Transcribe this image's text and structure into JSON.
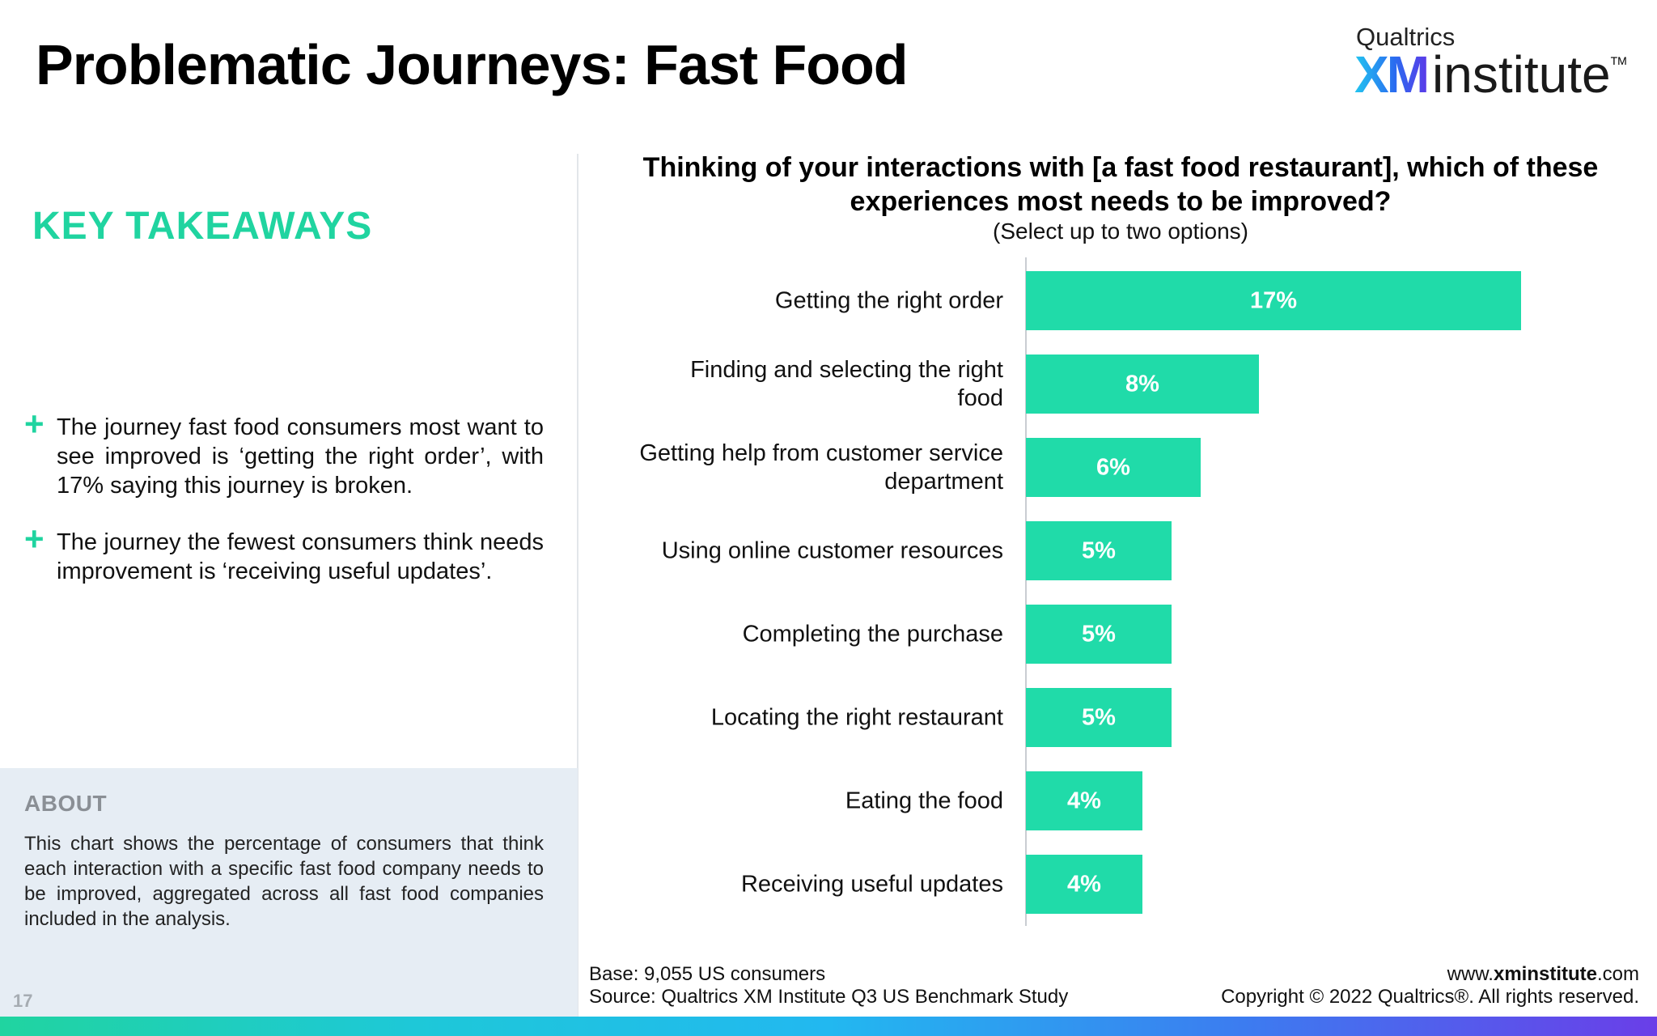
{
  "header": {
    "title": "Problematic Journeys: Fast Food",
    "logo_company": "Qualtrics",
    "logo_xm": "XM",
    "logo_word": "institute",
    "logo_tm": "TM"
  },
  "takeaways": {
    "heading": "KEY TAKEAWAYS",
    "bullet_symbol": "+",
    "items": [
      "The journey fast food consumers most want to see improved is ‘getting the right order’, with 17% saying this journey is broken.",
      "The journey the fewest consumers think needs improvement is ‘receiving useful updates’."
    ]
  },
  "about": {
    "heading": "ABOUT",
    "text": "This chart shows the percentage of consumers that think each interaction with a specific fast food company needs to be improved, aggregated across all fast food companies included in the analysis."
  },
  "page_number": "17",
  "chart_data": {
    "type": "bar",
    "orientation": "horizontal",
    "title": "Thinking of your interactions with [a fast food restaurant], which of these experiences most needs to be improved?",
    "subtitle": "(Select up to two options)",
    "categories": [
      "Getting the right order",
      "Finding and selecting the right food",
      "Getting help from customer service department",
      "Using online customer resources",
      "Completing the purchase",
      "Locating the right restaurant",
      "Eating the food",
      "Receiving useful updates"
    ],
    "values": [
      17,
      8,
      6,
      5,
      5,
      5,
      4,
      4
    ],
    "value_labels": [
      "17%",
      "8%",
      "6%",
      "5%",
      "5%",
      "5%",
      "4%",
      "4%"
    ],
    "unit": "%",
    "bar_color": "#20dba9"
  },
  "footer": {
    "base": "Base: 9,055 US consumers",
    "source": "Source: Qualtrics XM Institute Q3 US Benchmark Study",
    "site_prefix": "www.",
    "site_bold": "xminstitute",
    "site_suffix": ".com",
    "copyright": "Copyright © 2022 Qualtrics®. All rights reserved."
  }
}
